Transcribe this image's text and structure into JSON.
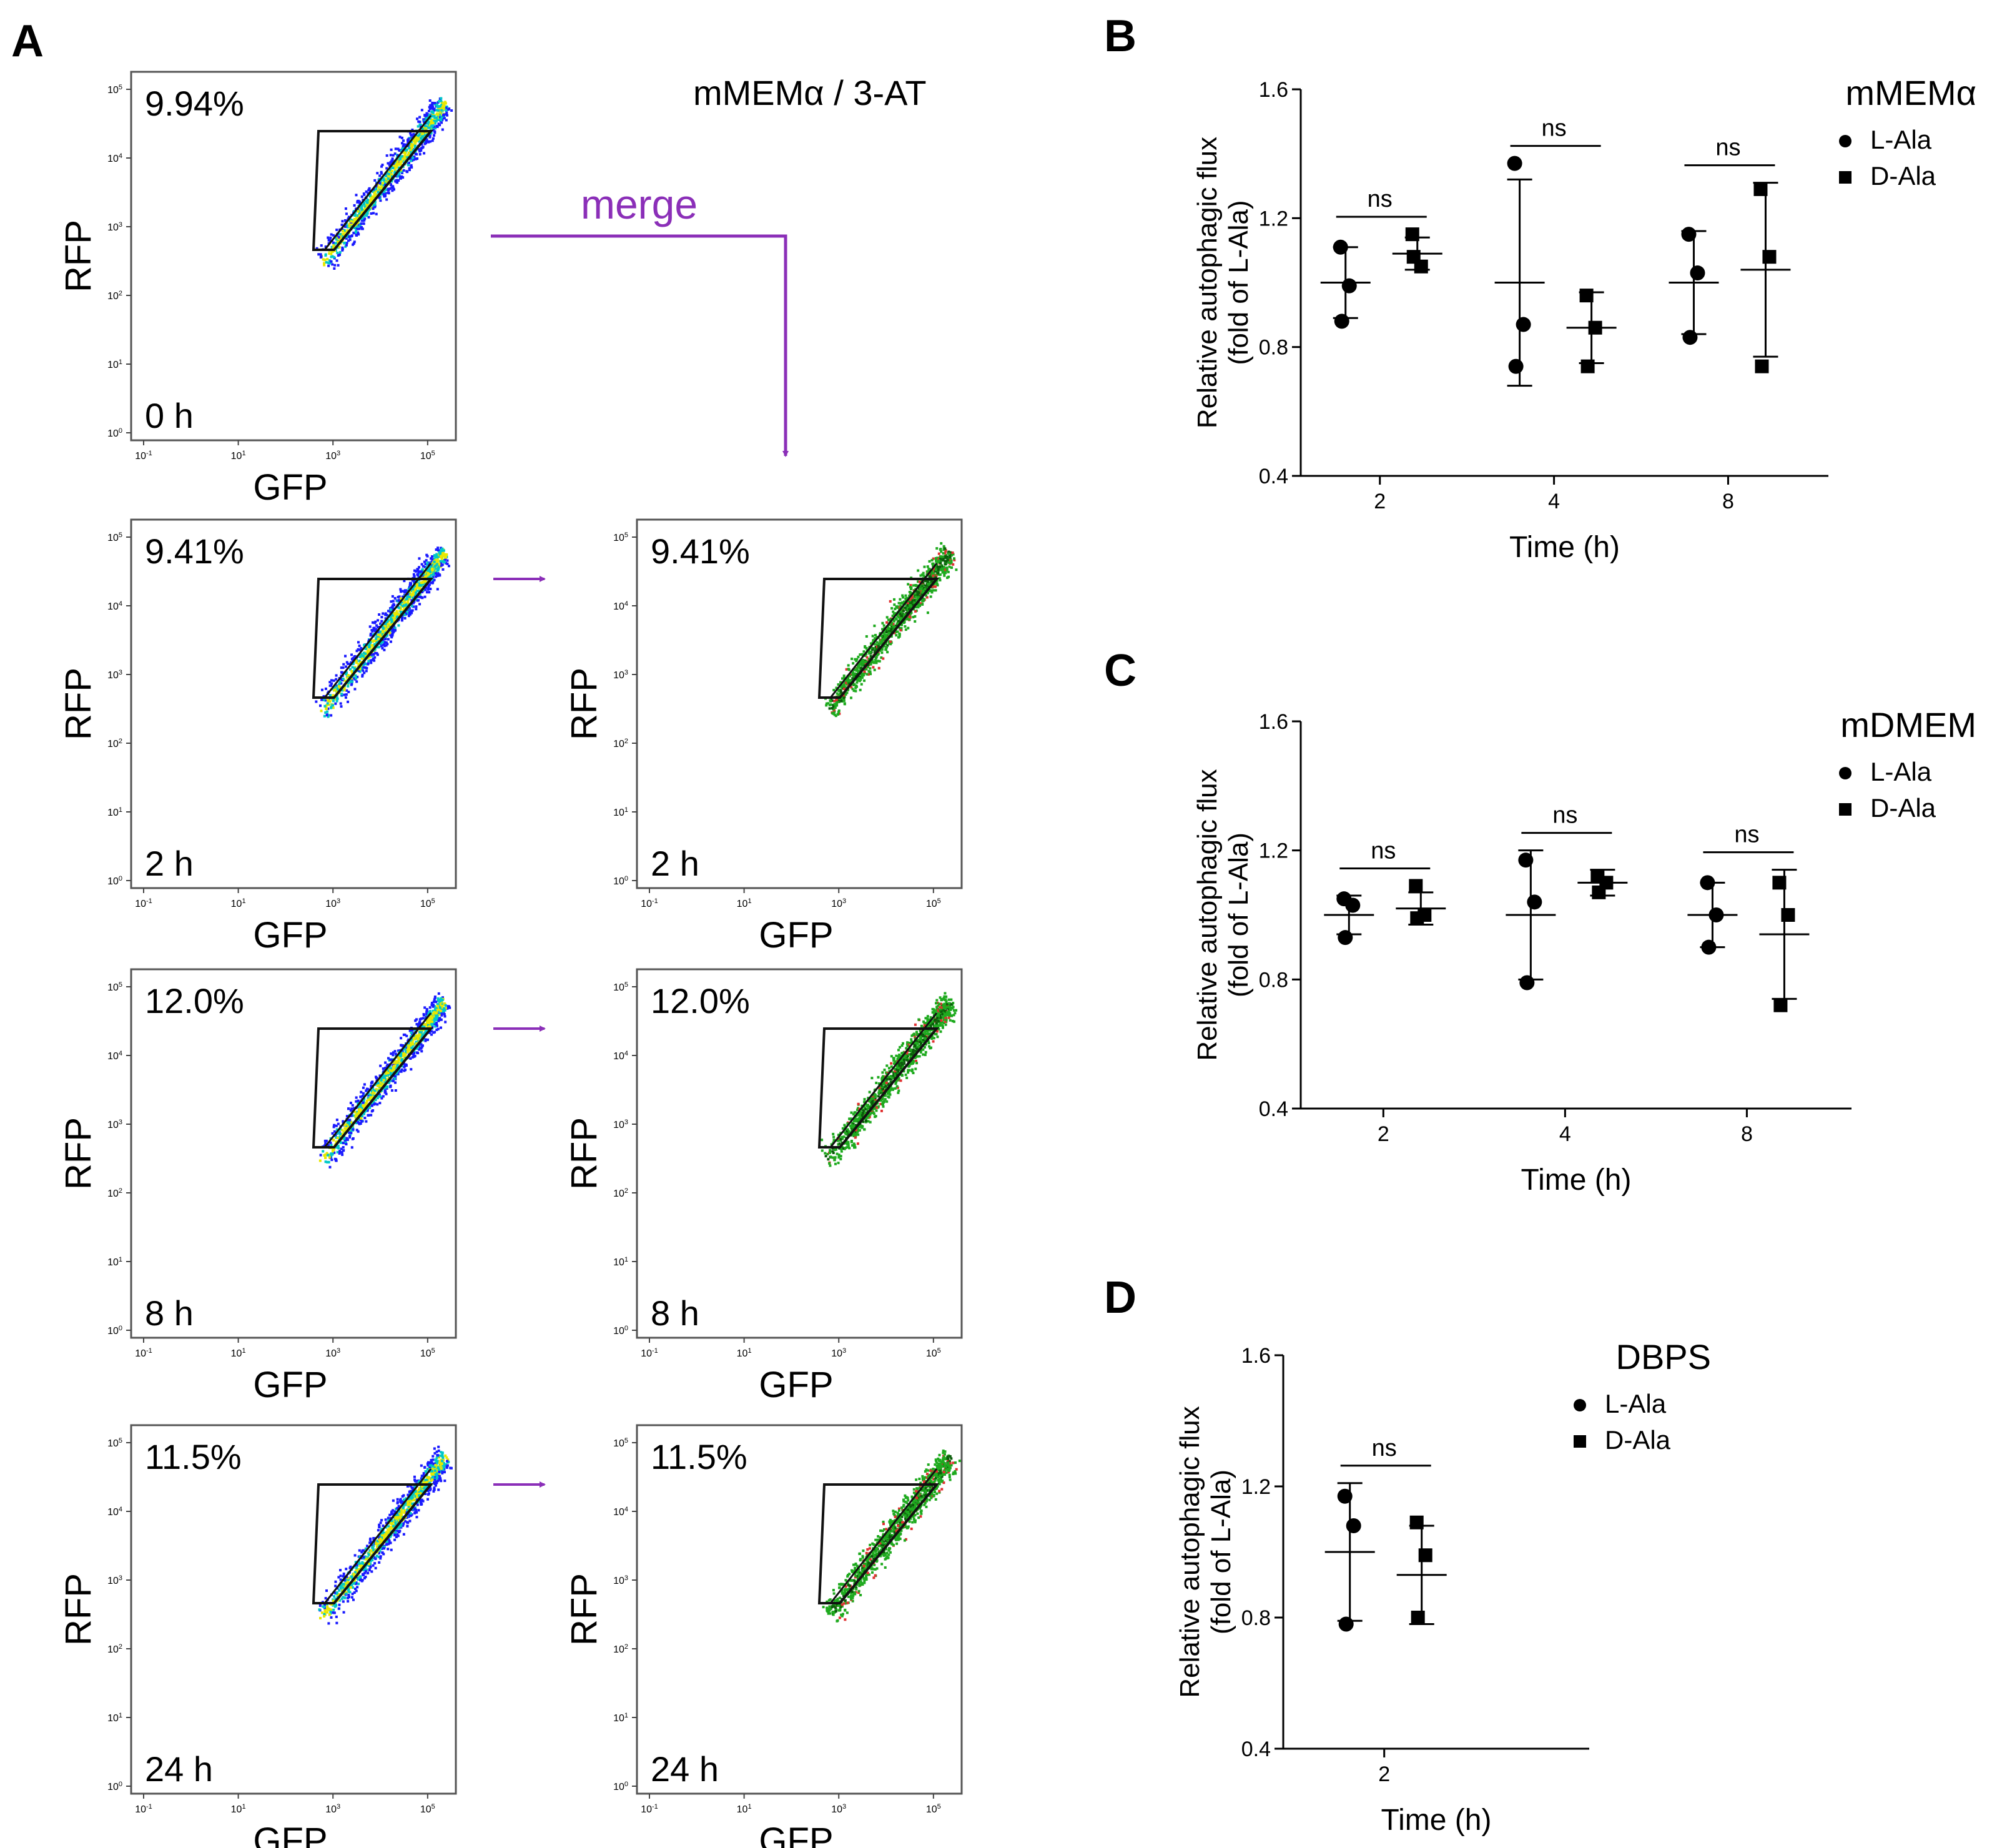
{
  "figure": {
    "panel_letters": {
      "A": "A",
      "B": "B",
      "C": "C",
      "D": "D"
    },
    "flow_panel": {
      "condition_label": "mMEMα / 3-AT",
      "merge_label": "merge",
      "x_axis_label": "GFP",
      "y_axis_label": "RFP",
      "x_tick_labels": [
        "10-1",
        "101",
        "103",
        "105"
      ],
      "y_tick_labels": [
        "100",
        "101",
        "102",
        "103",
        "104",
        "105"
      ],
      "plots": [
        {
          "time": "0 h",
          "percent": "9.94%",
          "merged": false
        },
        {
          "time": "2 h",
          "percent": "9.41%",
          "merged": true
        },
        {
          "time": "8 h",
          "percent": "12.0%",
          "merged": true
        },
        {
          "time": "24 h",
          "percent": "11.5%",
          "merged": true
        }
      ],
      "colors": {
        "density_low": "#1a1aff",
        "density_mid": "#00c8c8",
        "density_high": "#e8e800",
        "merge_green": "#1faa1f",
        "merge_red": "#e03030",
        "arrow": "#8b2fb8"
      }
    }
  },
  "chart_data": [
    {
      "id": "B",
      "type": "scatter",
      "title": "mMEMα",
      "xlabel": "Time (h)",
      "ylabel": "Relative autophagic flux",
      "ylabel2": "(fold of L-Ala)",
      "categories": [
        "2",
        "4",
        "8"
      ],
      "ylim": [
        0.4,
        1.6
      ],
      "yticks": [
        "0.4",
        "0.8",
        "1.2",
        "1.6"
      ],
      "legend": [
        "L-Ala",
        "D-Ala"
      ],
      "series": [
        {
          "name": "L-Ala",
          "marker": "circle",
          "points": [
            [
              1.11,
              0.99,
              0.88
            ],
            [
              1.37,
              0.87,
              0.74
            ],
            [
              1.15,
              1.03,
              0.83
            ]
          ],
          "mean": [
            1.0,
            1.0,
            1.0
          ],
          "sd": [
            0.11,
            0.32,
            0.16
          ]
        },
        {
          "name": "D-Ala",
          "marker": "square",
          "points": [
            [
              1.15,
              1.05,
              1.08
            ],
            [
              0.96,
              0.86,
              0.74
            ],
            [
              1.29,
              1.08,
              0.74
            ]
          ],
          "mean": [
            1.09,
            0.86,
            1.04
          ],
          "sd": [
            0.05,
            0.11,
            0.27
          ]
        }
      ],
      "significance": [
        "ns",
        "ns",
        "ns"
      ]
    },
    {
      "id": "C",
      "type": "scatter",
      "title": "mDMEM",
      "xlabel": "Time (h)",
      "ylabel": "Relative autophagic flux",
      "ylabel2": "(fold of L-Ala)",
      "categories": [
        "2",
        "4",
        "8"
      ],
      "ylim": [
        0.4,
        1.6
      ],
      "yticks": [
        "0.4",
        "0.8",
        "1.2",
        "1.6"
      ],
      "legend": [
        "L-Ala",
        "D-Ala"
      ],
      "series": [
        {
          "name": "L-Ala",
          "marker": "circle",
          "points": [
            [
              1.05,
              1.03,
              0.93
            ],
            [
              1.17,
              1.04,
              0.79
            ],
            [
              1.1,
              1.0,
              0.9
            ]
          ],
          "mean": [
            1.0,
            1.0,
            1.0
          ],
          "sd": [
            0.06,
            0.2,
            0.1
          ]
        },
        {
          "name": "D-Ala",
          "marker": "square",
          "points": [
            [
              1.09,
              1.0,
              0.99
            ],
            [
              1.12,
              1.1,
              1.07
            ],
            [
              1.1,
              1.0,
              0.72
            ]
          ],
          "mean": [
            1.02,
            1.1,
            0.94
          ],
          "sd": [
            0.05,
            0.04,
            0.2
          ]
        }
      ],
      "significance": [
        "ns",
        "ns",
        "ns"
      ]
    },
    {
      "id": "D",
      "type": "scatter",
      "title": "DBPS",
      "xlabel": "Time (h)",
      "ylabel": "Relative autophagic flux",
      "ylabel2": "(fold of L-Ala)",
      "categories": [
        "2"
      ],
      "ylim": [
        0.4,
        1.6
      ],
      "yticks": [
        "0.4",
        "0.8",
        "1.2",
        "1.6"
      ],
      "legend": [
        "L-Ala",
        "D-Ala"
      ],
      "series": [
        {
          "name": "L-Ala",
          "marker": "circle",
          "points": [
            [
              1.17,
              1.08,
              0.78
            ]
          ],
          "mean": [
            1.0
          ],
          "sd": [
            0.21
          ]
        },
        {
          "name": "D-Ala",
          "marker": "square",
          "points": [
            [
              1.09,
              0.99,
              0.8
            ]
          ],
          "mean": [
            0.93
          ],
          "sd": [
            0.15
          ]
        }
      ],
      "significance": [
        "ns"
      ]
    }
  ]
}
